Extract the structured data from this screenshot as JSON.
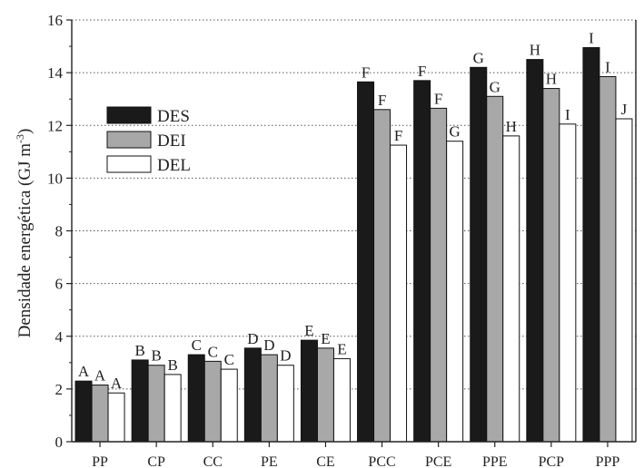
{
  "chart_data": {
    "type": "bar",
    "title": "",
    "xlabel": "",
    "ylabel": "Densidade energética (GJ m",
    "ylabel_sup": "-3",
    "ylabel_close": ")",
    "ylim": [
      0,
      16
    ],
    "yticks": [
      "0",
      "2",
      "4",
      "6",
      "8",
      "10",
      "12",
      "14",
      "16"
    ],
    "grid": "horizontal-dotted",
    "legend_position": "upper-left",
    "categories": [
      "PP",
      "CP",
      "CC",
      "PE",
      "CE",
      "PCC",
      "PCE",
      "PPE",
      "PCP",
      "PPP"
    ],
    "series": [
      {
        "name": "DES",
        "color": "#1a1a1a",
        "values": [
          2.3,
          3.1,
          3.3,
          3.55,
          3.85,
          13.65,
          13.7,
          14.2,
          14.5,
          14.95
        ],
        "labels": [
          "A",
          "B",
          "C",
          "D",
          "E",
          "F",
          "F",
          "G",
          "H",
          "I"
        ]
      },
      {
        "name": "DEI",
        "color": "#a8a8a8",
        "values": [
          2.15,
          2.9,
          3.05,
          3.3,
          3.55,
          12.6,
          12.65,
          13.1,
          13.4,
          13.85
        ],
        "labels": [
          "A",
          "B",
          "C",
          "D",
          "E",
          "F",
          "F",
          "G",
          "H",
          "I"
        ]
      },
      {
        "name": "DEL",
        "color": "#ffffff",
        "values": [
          1.85,
          2.55,
          2.75,
          2.9,
          3.15,
          11.25,
          11.4,
          11.6,
          12.05,
          12.25
        ],
        "labels": [
          "A",
          "B",
          "C",
          "D",
          "E",
          "F",
          "G",
          "H",
          "I",
          "J"
        ]
      }
    ]
  }
}
